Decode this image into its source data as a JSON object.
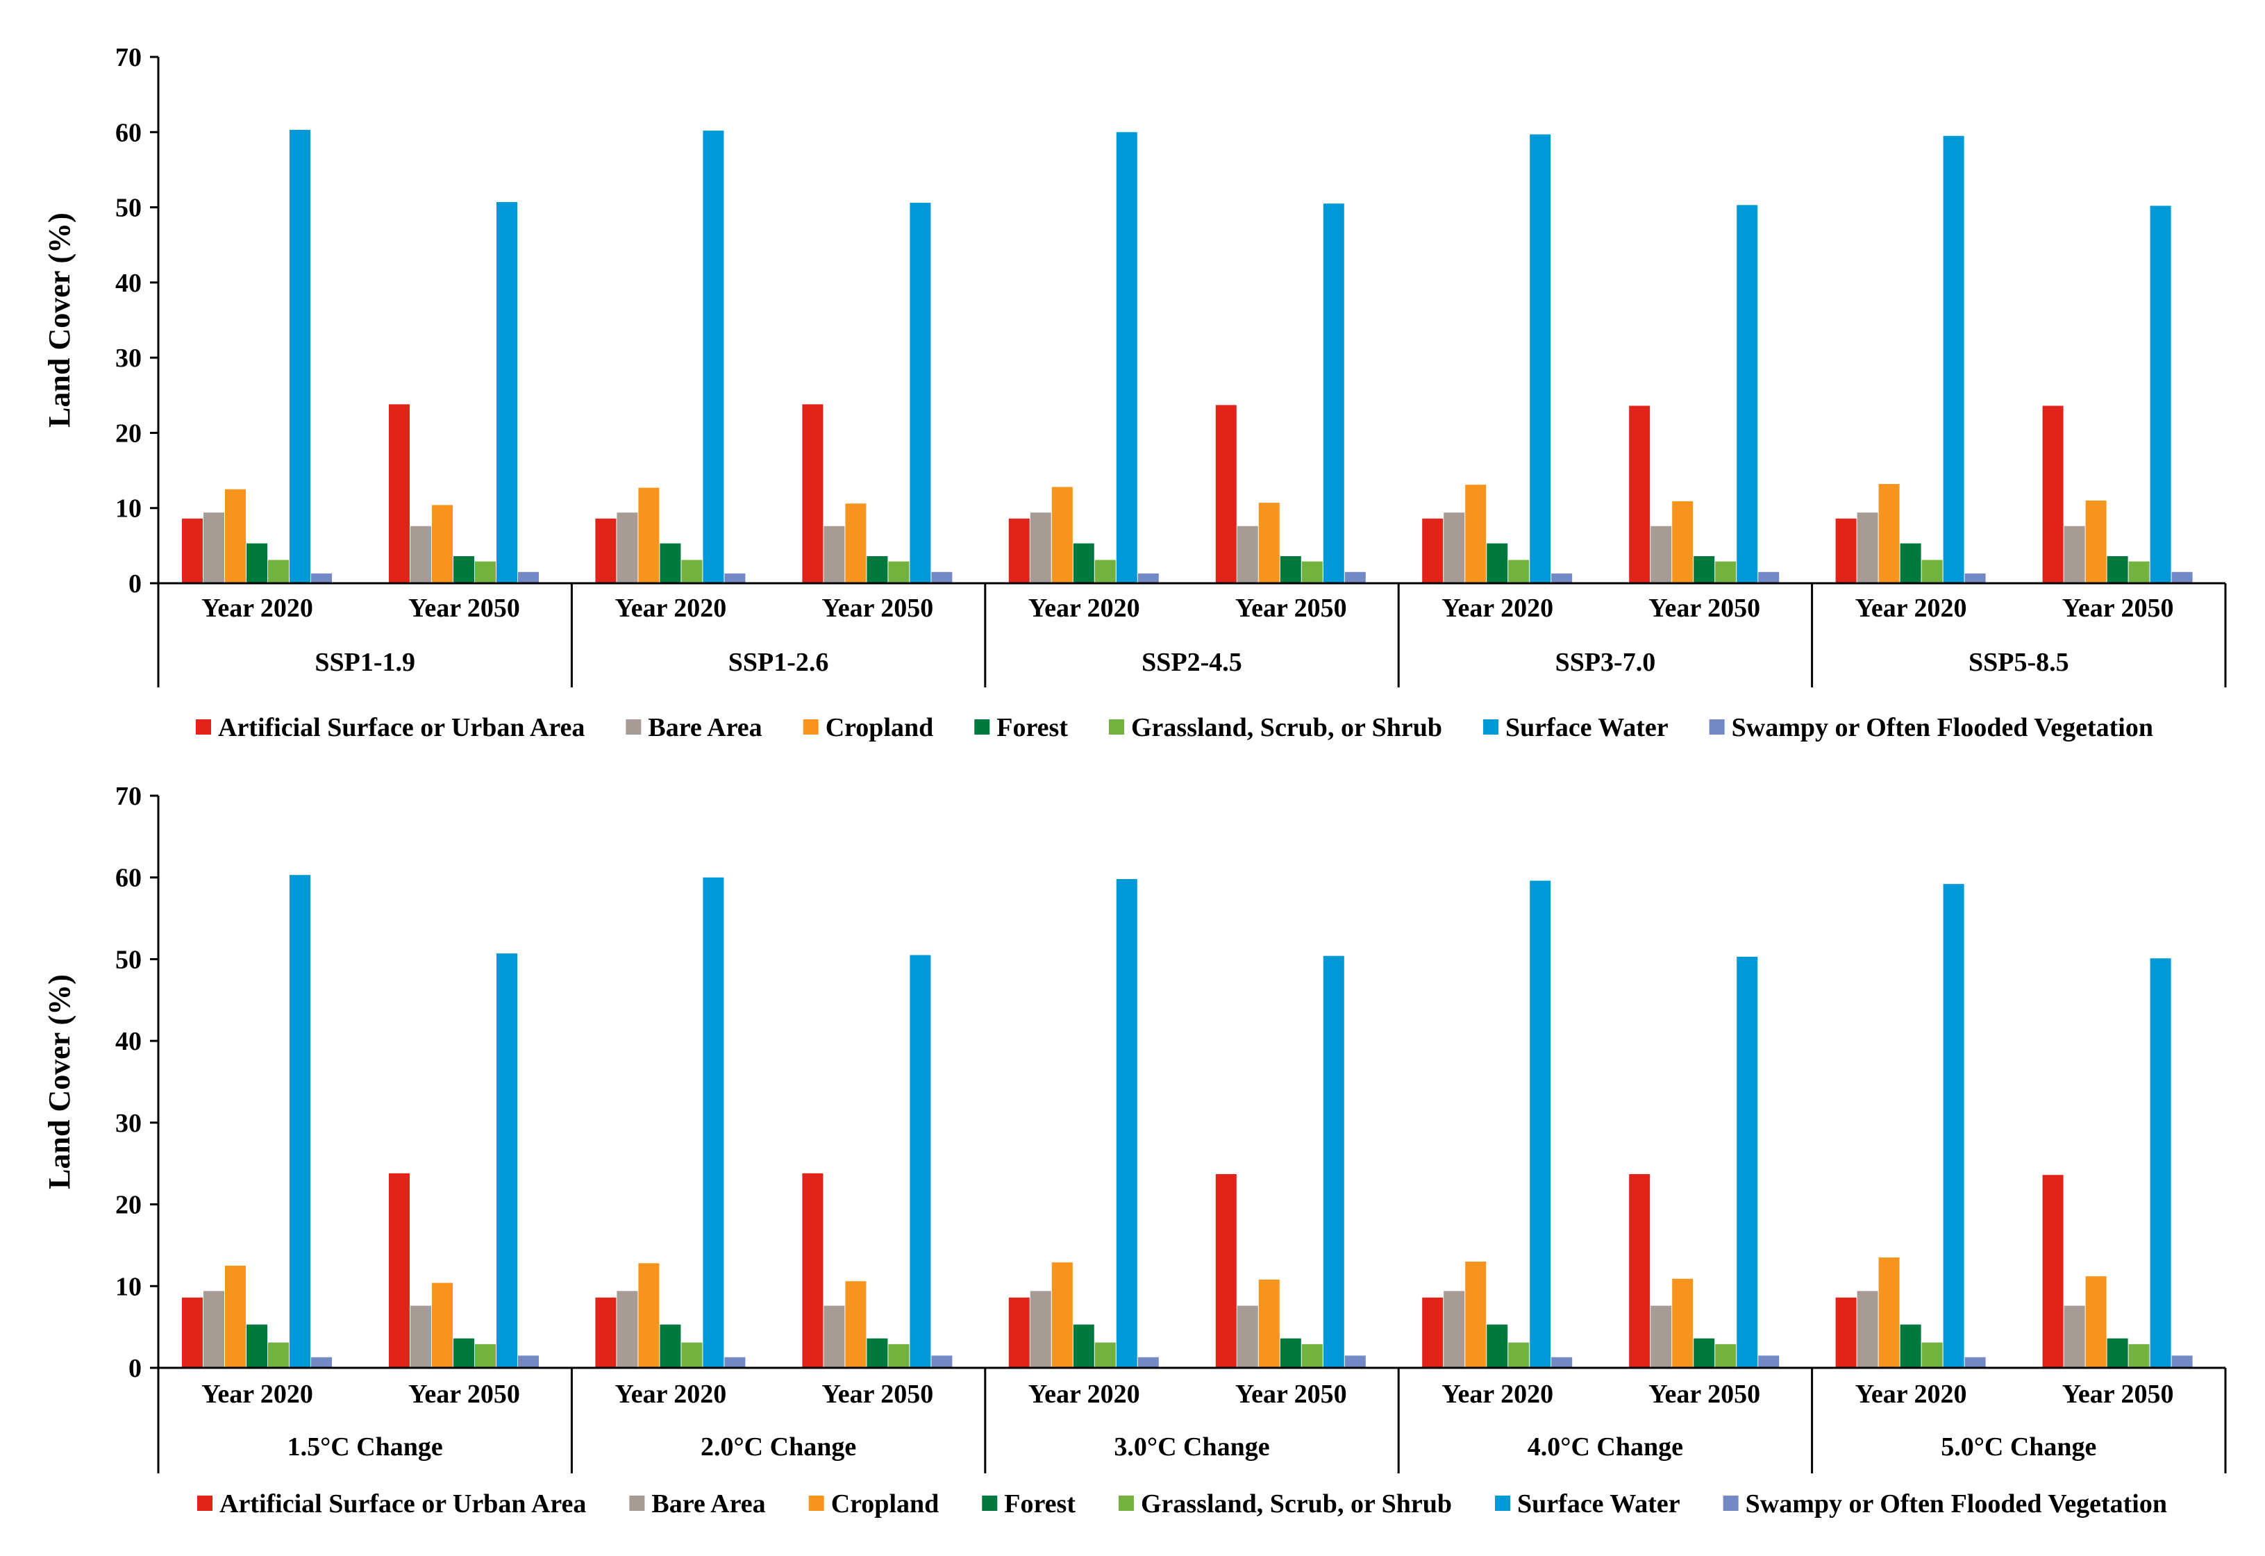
{
  "colors": {
    "artificial": "#e2231a",
    "bare": "#a69c95",
    "cropland": "#f7941d",
    "forest": "#00793f",
    "grassland": "#74b240",
    "water": "#0099d8",
    "swampy": "#7289c6"
  },
  "legend": {
    "items": [
      {
        "key": "artificial",
        "label": "Artificial Surface or Urban Area"
      },
      {
        "key": "bare",
        "label": "Bare Area"
      },
      {
        "key": "cropland",
        "label": "Cropland"
      },
      {
        "key": "forest",
        "label": "Forest"
      },
      {
        "key": "grassland",
        "label": "Grassland, Scrub, or Shrub"
      },
      {
        "key": "water",
        "label": "Surface Water"
      },
      {
        "key": "swampy",
        "label": "Swampy or Often Flooded Vegetation"
      }
    ]
  },
  "chart_data": [
    {
      "type": "bar",
      "ylabel": "Land Cover (%)",
      "ylim": [
        0,
        70
      ],
      "yticks": [
        0,
        10,
        20,
        30,
        40,
        50,
        60,
        70
      ],
      "categories": [
        "Year 2020",
        "Year 2050"
      ],
      "groups": [
        {
          "label": "SSP1-1.9",
          "values": [
            [
              8.6,
              9.4,
              12.5,
              5.3,
              3.1,
              60.3,
              1.3
            ],
            [
              23.8,
              7.6,
              10.4,
              3.6,
              2.9,
              50.7,
              1.5
            ]
          ]
        },
        {
          "label": "SSP1-2.6",
          "values": [
            [
              8.6,
              9.4,
              12.7,
              5.3,
              3.1,
              60.2,
              1.3
            ],
            [
              23.8,
              7.6,
              10.6,
              3.6,
              2.9,
              50.6,
              1.5
            ]
          ]
        },
        {
          "label": "SSP2-4.5",
          "values": [
            [
              8.6,
              9.4,
              12.8,
              5.3,
              3.1,
              60.0,
              1.3
            ],
            [
              23.7,
              7.6,
              10.7,
              3.6,
              2.9,
              50.5,
              1.5
            ]
          ]
        },
        {
          "label": "SSP3-7.0",
          "values": [
            [
              8.6,
              9.4,
              13.1,
              5.3,
              3.1,
              59.7,
              1.3
            ],
            [
              23.6,
              7.6,
              10.9,
              3.6,
              2.9,
              50.3,
              1.5
            ]
          ]
        },
        {
          "label": "SSP5-8.5",
          "values": [
            [
              8.6,
              9.4,
              13.2,
              5.3,
              3.1,
              59.5,
              1.3
            ],
            [
              23.6,
              7.6,
              11.0,
              3.6,
              2.9,
              50.2,
              1.5
            ]
          ]
        }
      ],
      "series": [
        "Artificial Surface or Urban Area",
        "Bare Area",
        "Cropland",
        "Forest",
        "Grassland, Scrub, or Shrub",
        "Surface Water",
        "Swampy or Often Flooded Vegetation"
      ]
    },
    {
      "type": "bar",
      "ylabel": "Land Cover (%)",
      "ylim": [
        0,
        70
      ],
      "yticks": [
        0,
        10,
        20,
        30,
        40,
        50,
        60,
        70
      ],
      "categories": [
        "Year 2020",
        "Year 2050"
      ],
      "groups": [
        {
          "label": "1.5°C Change",
          "values": [
            [
              8.6,
              9.4,
              12.5,
              5.3,
              3.1,
              60.3,
              1.3
            ],
            [
              23.8,
              7.6,
              10.4,
              3.6,
              2.9,
              50.7,
              1.5
            ]
          ]
        },
        {
          "label": "2.0°C Change",
          "values": [
            [
              8.6,
              9.4,
              12.8,
              5.3,
              3.1,
              60.0,
              1.3
            ],
            [
              23.8,
              7.6,
              10.6,
              3.6,
              2.9,
              50.5,
              1.5
            ]
          ]
        },
        {
          "label": "3.0°C Change",
          "values": [
            [
              8.6,
              9.4,
              12.9,
              5.3,
              3.1,
              59.8,
              1.3
            ],
            [
              23.7,
              7.6,
              10.8,
              3.6,
              2.9,
              50.4,
              1.5
            ]
          ]
        },
        {
          "label": "4.0°C Change",
          "values": [
            [
              8.6,
              9.4,
              13.0,
              5.3,
              3.1,
              59.6,
              1.3
            ],
            [
              23.7,
              7.6,
              10.9,
              3.6,
              2.9,
              50.3,
              1.5
            ]
          ]
        },
        {
          "label": "5.0°C Change",
          "values": [
            [
              8.6,
              9.4,
              13.5,
              5.3,
              3.1,
              59.2,
              1.3
            ],
            [
              23.6,
              7.6,
              11.2,
              3.6,
              2.9,
              50.1,
              1.5
            ]
          ]
        }
      ],
      "series": [
        "Artificial Surface or Urban Area",
        "Bare Area",
        "Cropland",
        "Forest",
        "Grassland, Scrub, or Shrub",
        "Surface Water",
        "Swampy or Often Flooded Vegetation"
      ]
    }
  ]
}
